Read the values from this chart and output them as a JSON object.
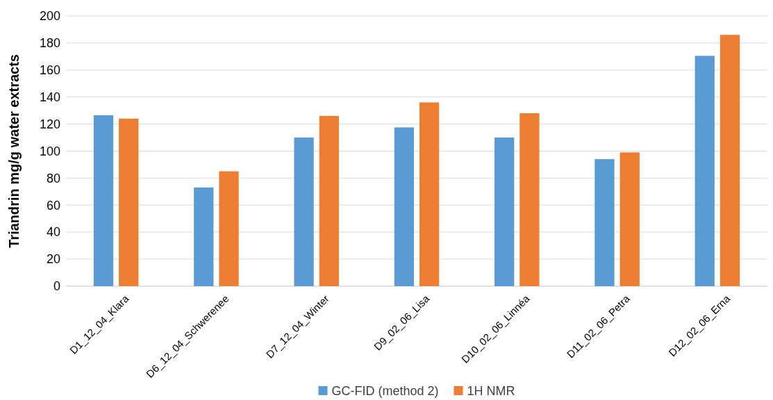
{
  "chart_data": {
    "type": "bar",
    "ylabel": "Triandrin mg/g water extracts",
    "categories": [
      "D1_12_04_Klara",
      "D6_12_04_Schwerenee",
      "D7_12_04_Winter",
      "D9_02_06_Lisa",
      "D10_02_06_Linnéa",
      "D11_02_06_Petra",
      "D12_02_06_Erna"
    ],
    "series": [
      {
        "name": "GC-FID (method 2)",
        "color": "#5b9bd5",
        "values": [
          126.5,
          73,
          110,
          117.5,
          110,
          94,
          170.5
        ]
      },
      {
        "name": "1H NMR",
        "color": "#ed7d31",
        "values": [
          124,
          85,
          126,
          136,
          128,
          99,
          186
        ]
      }
    ],
    "ylim": [
      0,
      200
    ],
    "yticks": [
      0,
      20,
      40,
      60,
      80,
      100,
      120,
      140,
      160,
      180,
      200
    ],
    "grid": "y",
    "legend": "bottom"
  }
}
